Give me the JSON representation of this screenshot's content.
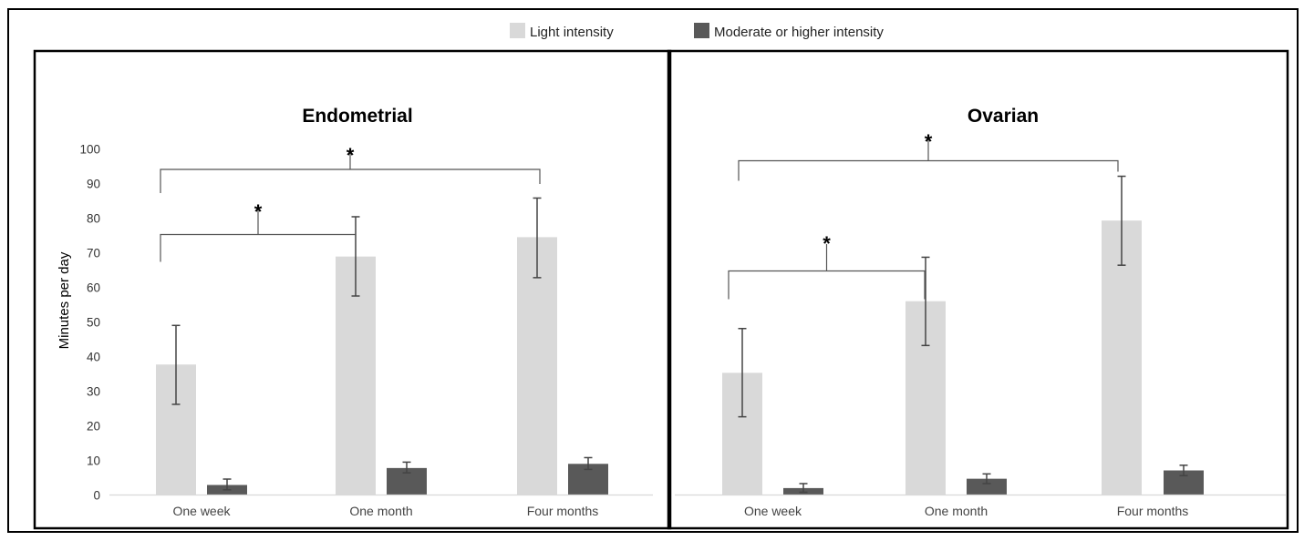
{
  "legend": {
    "items": [
      {
        "label": "Light intensity",
        "color": "#d9d9d9"
      },
      {
        "label": "Moderate or higher intensity",
        "color": "#595959"
      }
    ],
    "placement": "top-center"
  },
  "y_axis_title": "Minutes per day",
  "significance_marker": "*",
  "chart_data": [
    {
      "type": "bar",
      "title": "Endometrial",
      "ylabel": "Minutes per day",
      "xlabel": "",
      "ylim": [
        0,
        100
      ],
      "yticks": [
        "0",
        "10",
        "20",
        "30",
        "40",
        "50",
        "60",
        "70",
        "80",
        "90",
        "100"
      ],
      "categories": [
        "One week",
        "One month",
        "Four months"
      ],
      "series": [
        {
          "name": "Light intensity",
          "color": "#d9d9d9",
          "values": [
            37.7,
            68.9,
            74.5
          ],
          "error_low": [
            26.2,
            57.5,
            62.8
          ],
          "error_high": [
            49.0,
            80.4,
            85.8
          ]
        },
        {
          "name": "Moderate or higher intensity",
          "color": "#595959",
          "values": [
            2.9,
            7.8,
            9.0
          ],
          "error_low": [
            1.5,
            6.4,
            7.4
          ],
          "error_high": [
            4.6,
            9.5,
            10.8
          ]
        }
      ],
      "significance": [
        {
          "from": "One week",
          "to": "One month",
          "label": "*"
        },
        {
          "from": "One week",
          "to": "Four months",
          "label": "*"
        }
      ],
      "grid": false
    },
    {
      "type": "bar",
      "title": "Ovarian",
      "ylabel": "",
      "xlabel": "",
      "ylim": [
        0,
        100
      ],
      "categories": [
        "One week",
        "One month",
        "Four months"
      ],
      "series": [
        {
          "name": "Light intensity",
          "color": "#d9d9d9",
          "values": [
            35.3,
            56.0,
            79.3
          ],
          "error_low": [
            22.6,
            43.2,
            66.4
          ],
          "error_high": [
            48.1,
            68.7,
            92.1
          ]
        },
        {
          "name": "Moderate or higher intensity",
          "color": "#595959",
          "values": [
            2.0,
            4.7,
            7.1
          ],
          "error_low": [
            0.8,
            3.3,
            5.6
          ],
          "error_high": [
            3.3,
            6.1,
            8.6
          ]
        }
      ],
      "significance": [
        {
          "from": "One week",
          "to": "One month",
          "label": "*"
        },
        {
          "from": "One week",
          "to": "Four months",
          "label": "*"
        }
      ],
      "grid": false
    }
  ]
}
